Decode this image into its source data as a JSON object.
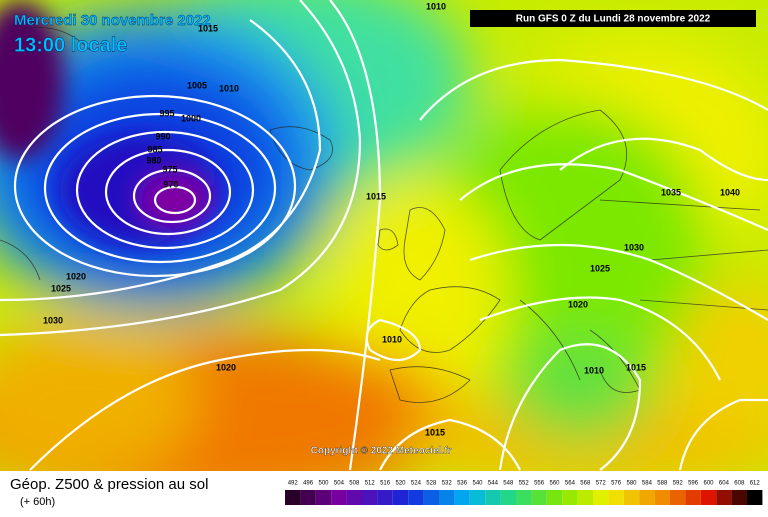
{
  "header": {
    "date": "Mercredi 30 novembre 2022",
    "time": "13:00 locale",
    "run": "Run GFS 0 Z du Lundi 28 novembre 2022"
  },
  "copyright": "Copyright © 2022 Meteociel.fr",
  "footer": {
    "title": "Géop. Z500 & pression au sol",
    "lead": "(+ 60h)"
  },
  "scale": [
    492,
    496,
    500,
    504,
    508,
    512,
    516,
    520,
    524,
    528,
    532,
    536,
    540,
    544,
    548,
    552,
    556,
    560,
    564,
    568,
    572,
    576,
    580,
    584,
    588,
    592,
    596,
    600,
    604,
    608,
    612
  ],
  "isobar_labels": [
    1010,
    1015,
    1005,
    1010,
    995,
    1000,
    990,
    985,
    980,
    975,
    970,
    1015,
    1035,
    1040,
    1030,
    1025,
    1020,
    1025,
    1020,
    1030,
    1010,
    1010,
    1015,
    1020,
    1015
  ]
}
